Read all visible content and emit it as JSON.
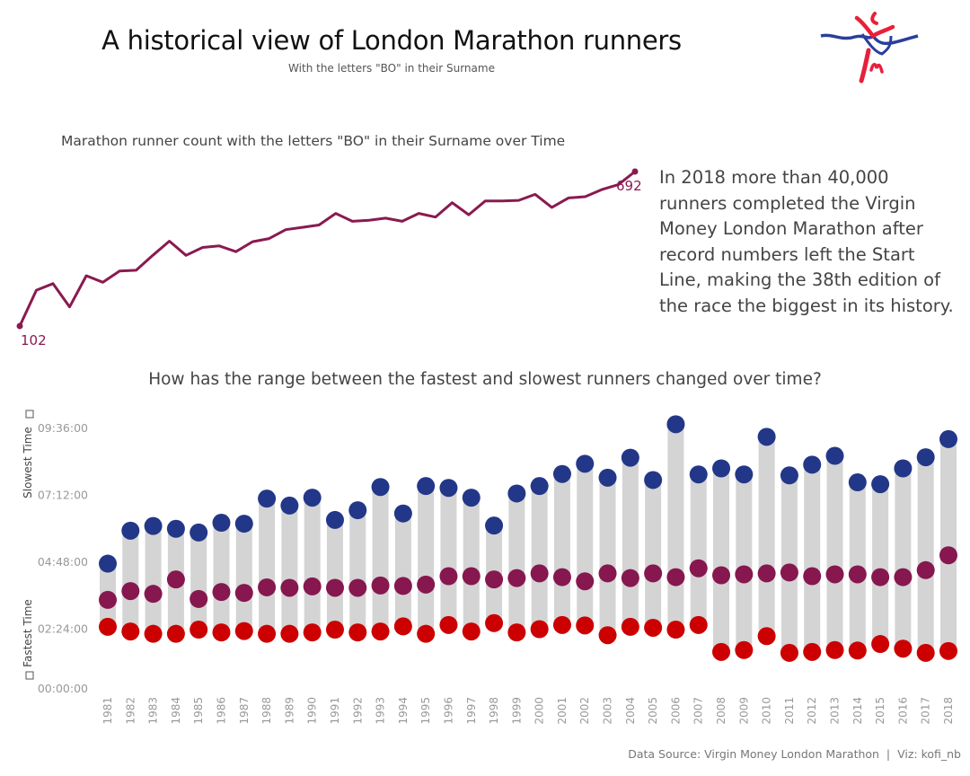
{
  "header": {
    "title": "A historical view of London Marathon runners",
    "subtitle": "With the letters \"BO\" in their Surname"
  },
  "logo": {
    "name": "London Marathon logo",
    "colors": [
      "#e8203a",
      "#2a3f9b"
    ]
  },
  "blurb": [
    "In 2018 more than 40,000",
    "runners completed the Virgin",
    "Money London Marathon after",
    "record numbers left the Start",
    "Line, making the 38th edition of",
    "the race the biggest in its history."
  ],
  "footer": "Data Source: Virgin Money London Marathon  |  Viz: kofi_nb",
  "chart_data": [
    {
      "type": "line",
      "title": "Marathon runner count with the letters \"BO\" in their Surname over Time",
      "x": [
        1981,
        1982,
        1983,
        1984,
        1985,
        1986,
        1987,
        1988,
        1989,
        1990,
        1991,
        1992,
        1993,
        1994,
        1995,
        1996,
        1997,
        1998,
        1999,
        2000,
        2001,
        2002,
        2003,
        2004,
        2005,
        2006,
        2007,
        2008,
        2009,
        2010,
        2011,
        2012,
        2013,
        2014,
        2015,
        2016,
        2017,
        2018
      ],
      "values": [
        102,
        239,
        264,
        175,
        294,
        269,
        312,
        315,
        372,
        426,
        372,
        402,
        408,
        386,
        424,
        436,
        470,
        479,
        488,
        532,
        502,
        506,
        514,
        502,
        532,
        518,
        573,
        527,
        580,
        580,
        582,
        605,
        555,
        591,
        596,
        623,
        642,
        692
      ],
      "labels": {
        "first": "102",
        "last": "692"
      },
      "color": "#8a1a50",
      "axes_visible": false,
      "grid": false
    },
    {
      "type": "dumbbell",
      "title": "How has the range between the fastest and slowest runners changed over time?",
      "ylabel_top": "Slowest Time",
      "ylabel_bottom": "Fastest Time",
      "y_ticks": [
        "00:00:00",
        "02:24:00",
        "04:48:00",
        "07:12:00",
        "09:36:00"
      ],
      "ylim": [
        "00:00:00",
        "10:05:00"
      ],
      "categories": [
        "1981",
        "1982",
        "1983",
        "1984",
        "1985",
        "1986",
        "1987",
        "1988",
        "1989",
        "1990",
        "1991",
        "1992",
        "1993",
        "1994",
        "1995",
        "1996",
        "1997",
        "1998",
        "1999",
        "2000",
        "2001",
        "2002",
        "2003",
        "2004",
        "2005",
        "2006",
        "2007",
        "2008",
        "2009",
        "2010",
        "2011",
        "2012",
        "2013",
        "2014",
        "2015",
        "2016",
        "2017",
        "2018"
      ],
      "series": [
        {
          "key": "slowest",
          "color": "#233789",
          "values": [
            "4:45",
            "5:56",
            "6:06",
            "6:00",
            "5:52",
            "6:13",
            "6:11",
            "7:05",
            "6:50",
            "7:07",
            "6:19",
            "6:40",
            "7:30",
            "6:33",
            "7:32",
            "7:28",
            "7:07",
            "6:07",
            "7:16",
            "7:32",
            "7:58",
            "8:20",
            "7:50",
            "8:33",
            "7:45",
            "9:45",
            "7:57",
            "8:10",
            "7:57",
            "9:18",
            "7:55",
            "8:18",
            "8:37",
            "7:40",
            "7:36",
            "8:10",
            "8:34",
            "9:13"
          ]
        },
        {
          "key": "middle",
          "color": "#86174f",
          "values": [
            "3:27",
            "3:46",
            "3:40",
            "4:11",
            "3:29",
            "3:44",
            "3:42",
            "3:54",
            "3:53",
            "3:56",
            "3:53",
            "3:53",
            "3:58",
            "3:57",
            "4:00",
            "4:18",
            "4:18",
            "4:11",
            "4:14",
            "4:24",
            "4:16",
            "4:07",
            "4:24",
            "4:14",
            "4:24",
            "4:16",
            "4:35",
            "4:20",
            "4:22",
            "4:24",
            "4:26",
            "4:18",
            "4:22",
            "4:22",
            "4:16",
            "4:16",
            "4:31",
            "5:03"
          ]
        },
        {
          "key": "fastest",
          "color": "#cc0000",
          "values": [
            "2:29",
            "2:19",
            "2:14",
            "2:14",
            "2:23",
            "2:17",
            "2:20",
            "2:14",
            "2:14",
            "2:17",
            "2:23",
            "2:17",
            "2:19",
            "2:30",
            "2:14",
            "2:33",
            "2:19",
            "2:37",
            "2:17",
            "2:24",
            "2:33",
            "2:32",
            "2:11",
            "2:29",
            "2:27",
            "2:23",
            "2:33",
            "1:35",
            "1:39",
            "2:09",
            "1:33",
            "1:35",
            "1:39",
            "1:38",
            "1:52",
            "1:42",
            "1:33",
            "1:37"
          ]
        }
      ],
      "range_bar_color": "#d4d4d4",
      "grid": false
    }
  ]
}
